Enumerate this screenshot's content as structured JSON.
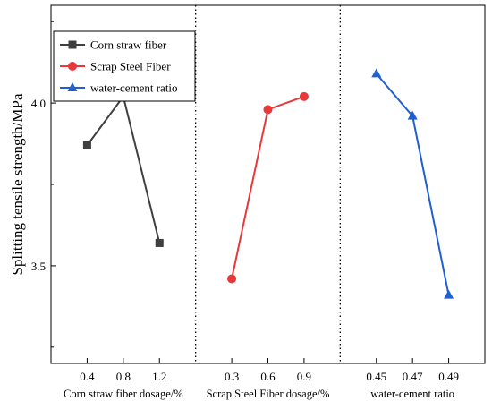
{
  "chart_data": {
    "type": "line",
    "ylabel": "Splitting tensile strength/MPa",
    "ylim": [
      3.2,
      4.3
    ],
    "y_ticks": [
      "3.5",
      "4.0"
    ],
    "grid": false,
    "legend_position": "top-left",
    "groups": [
      {
        "xlabel": "Corn straw fiber dosage/%",
        "categories": [
          "0.4",
          "0.8",
          "1.2"
        ],
        "series": {
          "name": "Corn straw fiber",
          "values": [
            3.87,
            4.02,
            3.57
          ],
          "color": "#3f3f3f",
          "marker": "square"
        }
      },
      {
        "xlabel": "Scrap Steel Fiber dosage/%",
        "categories": [
          "0.3",
          "0.6",
          "0.9"
        ],
        "series": {
          "name": "Scrap Steel Fiber",
          "values": [
            3.46,
            3.98,
            4.02
          ],
          "color": "#e8383a",
          "marker": "circle"
        }
      },
      {
        "xlabel": "water-cement ratio",
        "categories": [
          "0.45",
          "0.47",
          "0.49"
        ],
        "series": {
          "name": "water-cement ratio",
          "values": [
            4.09,
            3.96,
            3.41
          ],
          "color": "#1f5fd0",
          "marker": "triangle"
        }
      }
    ]
  }
}
